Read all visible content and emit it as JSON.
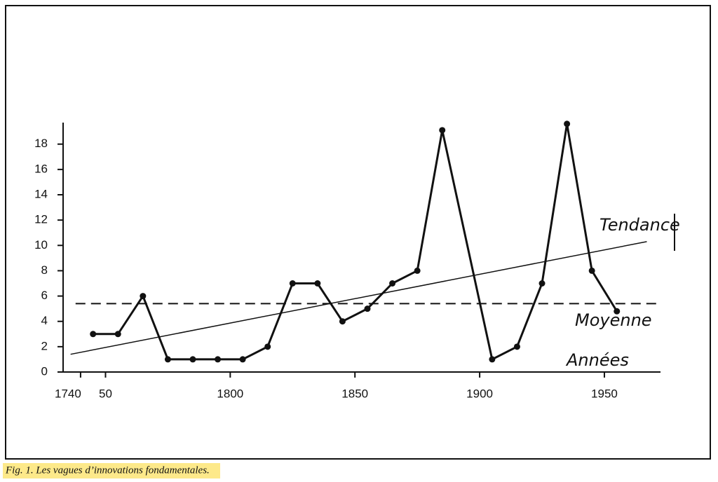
{
  "chart_data": {
    "type": "line",
    "caption": "Fig. 1. Les vagues d’innovations fondamentales.",
    "xlabel": "Années",
    "xlim": [
      1733,
      1972.5
    ],
    "ylim": [
      0,
      19.7
    ],
    "xticks": [
      1740,
      {
        "value": 1750,
        "label": "50"
      },
      1800,
      1850,
      1900,
      1950
    ],
    "yticks": [
      0,
      2,
      4,
      6,
      8,
      10,
      12,
      14,
      16,
      18
    ],
    "series": [
      {
        "color": "#111",
        "x": [
          1745,
          1755,
          1765,
          1775,
          1785,
          1795,
          1805,
          1815,
          1825,
          1835,
          1845,
          1855,
          1865,
          1875,
          1885,
          1905,
          1915,
          1925,
          1935,
          1945,
          1955
        ],
        "values": [
          3,
          3,
          6,
          1,
          1,
          1,
          1,
          2,
          7,
          7,
          4,
          5,
          7,
          8,
          19.1,
          1,
          2,
          7,
          19.6,
          8,
          4.8
        ]
      },
      {
        "name": "Tendance",
        "color": "#111",
        "x": [
          1736,
          1967
        ],
        "values": [
          1.4,
          10.3
        ]
      },
      {
        "name": "Moyenne",
        "color": "#111",
        "dashed": true,
        "x": [
          1738,
          1972
        ],
        "values": [
          5.4,
          5.4
        ]
      }
    ]
  }
}
